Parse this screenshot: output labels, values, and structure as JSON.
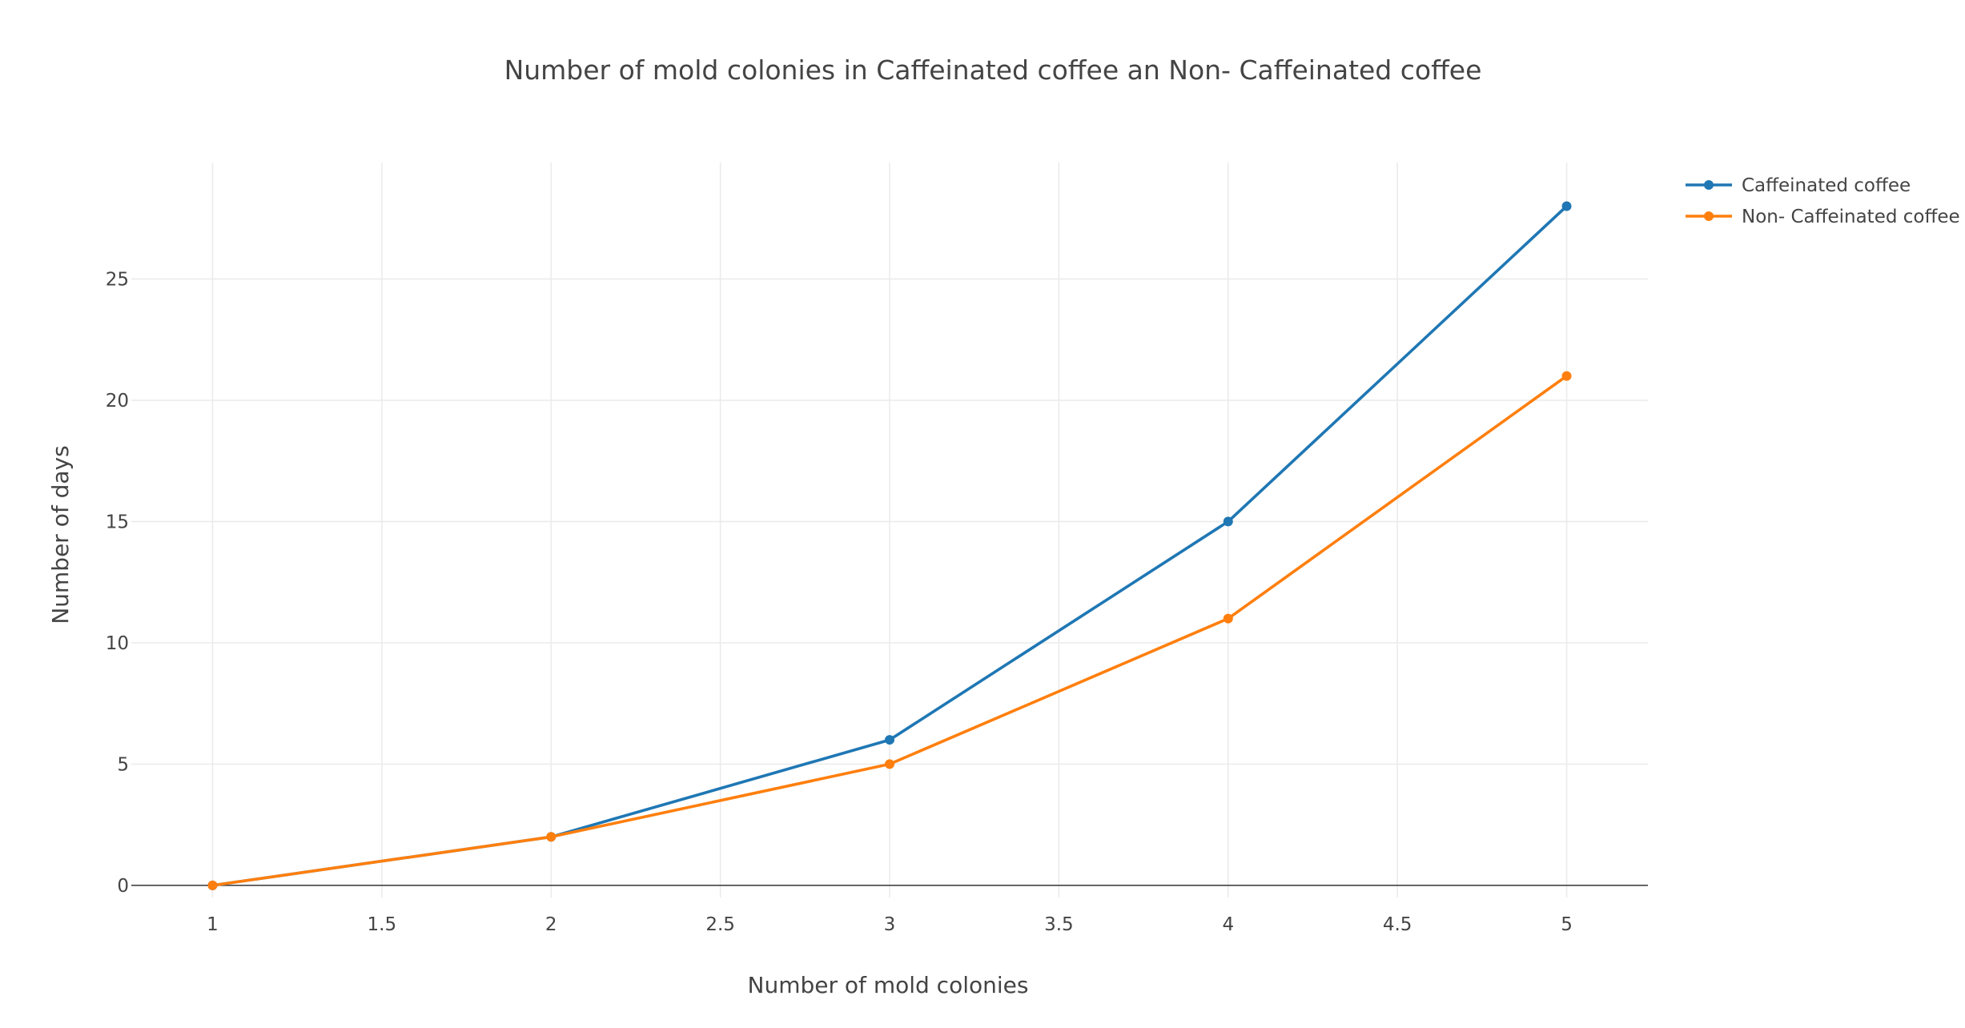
{
  "chart_data": {
    "type": "line",
    "title": "Number of mold colonies in Caffeinated coffee an Non- Caffeinated coffee",
    "xlabel": "Number of mold colonies",
    "ylabel": "Number of days",
    "x": [
      1,
      2,
      3,
      4,
      5
    ],
    "xlim": [
      0.76,
      5.24
    ],
    "ylim": [
      -0.5,
      29.8
    ],
    "xticks": [
      "1",
      "1.5",
      "2",
      "2.5",
      "3",
      "3.5",
      "4",
      "4.5",
      "5"
    ],
    "yticks": [
      "0",
      "5",
      "10",
      "15",
      "20",
      "25"
    ],
    "grid": true,
    "legend_position": "top-right (outside plot)",
    "series": [
      {
        "name": "Caffeinated coffee",
        "values": [
          0,
          2,
          6,
          15,
          28
        ],
        "color": "#1f77b4"
      },
      {
        "name": "Non- Caffeinated coffee",
        "values": [
          0,
          2,
          5,
          11,
          21
        ],
        "color": "#ff7f0e"
      }
    ]
  }
}
